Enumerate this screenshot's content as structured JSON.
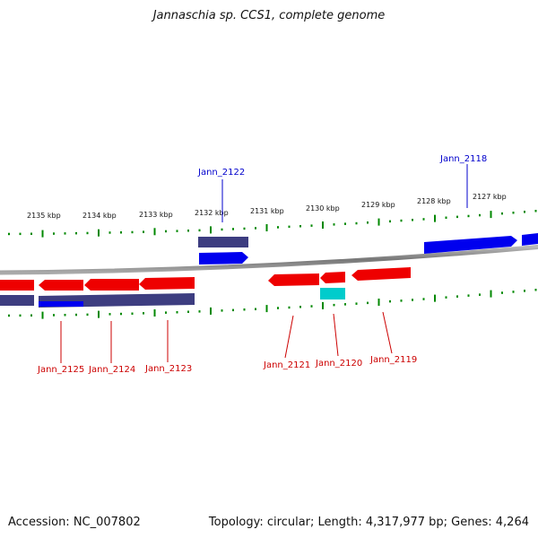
{
  "title": "Jannaschia sp. CCS1, complete genome",
  "footer": {
    "accession": "Accession: NC_007802",
    "stats": "Topology: circular; Length: 4,317,977 bp; Genes: 4,264"
  },
  "ticks": {
    "labels": [
      "2135 kbp",
      "2134 kbp",
      "2133 kbp",
      "2132 kbp",
      "2131 kbp",
      "2130 kbp",
      "2129 kbp",
      "2128 kbp",
      "2127 kbp"
    ]
  },
  "genes": [
    {
      "label": "Jann_2122",
      "strand": "forward",
      "color": "#0000cc"
    },
    {
      "label": "Jann_2118",
      "strand": "forward",
      "color": "#0000cc"
    },
    {
      "label": "Jann_2125",
      "strand": "reverse",
      "color": "#cc0000"
    },
    {
      "label": "Jann_2124",
      "strand": "reverse",
      "color": "#cc0000"
    },
    {
      "label": "Jann_2123",
      "strand": "reverse",
      "color": "#cc0000"
    },
    {
      "label": "Jann_2121",
      "strand": "reverse",
      "color": "#cc0000"
    },
    {
      "label": "Jann_2120",
      "strand": "reverse",
      "color": "#cc0000"
    },
    {
      "label": "Jann_2119",
      "strand": "reverse",
      "color": "#cc0000"
    }
  ],
  "colors": {
    "forward": "#0000ee",
    "reverse": "#ee0000",
    "other": "#3d3d80",
    "rna": "#00cccc",
    "tick": "#008800",
    "backbone": "#888888"
  }
}
